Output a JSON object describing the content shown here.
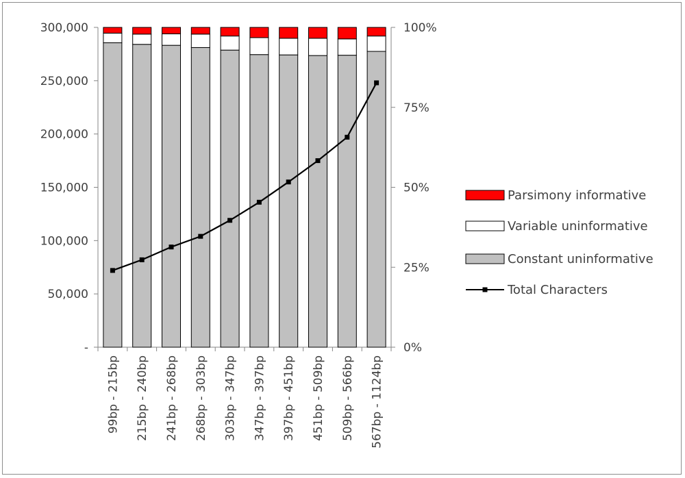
{
  "chart_data": {
    "type": "bar",
    "stacked": true,
    "categories": [
      "99bp - 215bp",
      "215bp - 240bp",
      "241bp - 268bp",
      "268bp - 303bp",
      "303bp - 347bp",
      "347bp - 397bp",
      "397bp - 451bp",
      "451bp - 509bp",
      "509bp - 566bp",
      "567bp - 1124bp"
    ],
    "y_left": {
      "ylim": [
        0,
        300000
      ],
      "tick_labels": [
        "-",
        "50,000",
        "100,000",
        "150,000",
        "200,000",
        "250,000",
        "300,000"
      ],
      "tick_values": [
        0,
        50000,
        100000,
        150000,
        200000,
        250000,
        300000
      ]
    },
    "y_right": {
      "ylim": [
        0,
        1
      ],
      "tick_labels": [
        "0%",
        "25%",
        "50%",
        "75%",
        "100%"
      ],
      "tick_values": [
        0,
        0.25,
        0.5,
        0.75,
        1.0
      ]
    },
    "series": [
      {
        "name": "Constant uninformative",
        "axis": "right",
        "color": "#c0c0c0",
        "values": [
          0.952,
          0.947,
          0.944,
          0.937,
          0.929,
          0.915,
          0.914,
          0.912,
          0.913,
          0.925
        ]
      },
      {
        "name": "Variable uninformative",
        "axis": "right",
        "color": "#ffffff",
        "values": [
          0.03,
          0.032,
          0.036,
          0.042,
          0.044,
          0.053,
          0.052,
          0.054,
          0.051,
          0.048
        ]
      },
      {
        "name": "Parsimony informative",
        "axis": "right",
        "color": "#ff0000",
        "values": [
          0.018,
          0.021,
          0.02,
          0.021,
          0.027,
          0.032,
          0.034,
          0.034,
          0.036,
          0.027
        ]
      },
      {
        "name": "Total Characters",
        "axis": "left",
        "type": "line",
        "color": "#000000",
        "values": [
          72000,
          82000,
          94000,
          104000,
          119000,
          136000,
          155000,
          175000,
          197000,
          248000
        ]
      }
    ],
    "legend": {
      "position": "right",
      "items": [
        {
          "label": "Parsimony informative",
          "color": "#ff0000",
          "kind": "box"
        },
        {
          "label": "Variable uninformative",
          "color": "#ffffff",
          "kind": "box"
        },
        {
          "label": "Constant uninformative",
          "color": "#c0c0c0",
          "kind": "box"
        },
        {
          "label": "Total Characters",
          "color": "#000000",
          "kind": "line"
        }
      ]
    },
    "grid": false
  }
}
